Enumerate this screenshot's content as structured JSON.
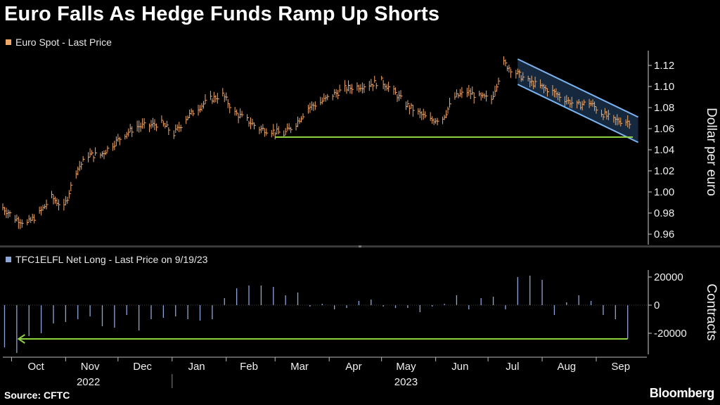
{
  "title": "Euro Falls As Hedge Funds Ramp Up Shorts",
  "source": "Source: CFTC",
  "brand": "Bloomberg",
  "colors": {
    "background": "#000000",
    "price": "#f0a868",
    "positions": "#8da6d8",
    "channel": "#7ab4f0",
    "support": "#8fd03f"
  },
  "chart_data": [
    {
      "type": "line",
      "legend": "Euro Spot - Last Price",
      "ylabel": "Dollar per euro",
      "ylim": [
        0.95,
        1.13
      ],
      "yticks": [
        0.96,
        0.98,
        1.0,
        1.02,
        1.04,
        1.06,
        1.08,
        1.1,
        1.12
      ],
      "ytick_labels": [
        "0.96",
        "0.98",
        "1.00",
        "1.02",
        "1.04",
        "1.06",
        "1.08",
        "1.10",
        "1.12"
      ],
      "grid": false,
      "legend_position": "top-left",
      "x": [
        "2022-09-26",
        "2022-10-03",
        "2022-10-10",
        "2022-10-17",
        "2022-10-24",
        "2022-10-31",
        "2022-11-07",
        "2022-11-14",
        "2022-11-21",
        "2022-11-28",
        "2022-12-05",
        "2022-12-12",
        "2022-12-19",
        "2022-12-26",
        "2023-01-02",
        "2023-01-09",
        "2023-01-16",
        "2023-01-23",
        "2023-01-30",
        "2023-02-06",
        "2023-02-13",
        "2023-02-20",
        "2023-02-27",
        "2023-03-06",
        "2023-03-13",
        "2023-03-20",
        "2023-03-27",
        "2023-04-03",
        "2023-04-10",
        "2023-04-17",
        "2023-04-24",
        "2023-05-01",
        "2023-05-08",
        "2023-05-15",
        "2023-05-22",
        "2023-05-29",
        "2023-06-05",
        "2023-06-12",
        "2023-06-19",
        "2023-06-26",
        "2023-07-03",
        "2023-07-10",
        "2023-07-17",
        "2023-07-24",
        "2023-07-31",
        "2023-08-07",
        "2023-08-14",
        "2023-08-21",
        "2023-08-28",
        "2023-09-04",
        "2023-09-11",
        "2023-09-18"
      ],
      "series": [
        {
          "values": [
            0.985,
            0.975,
            0.97,
            0.98,
            0.995,
            0.985,
            1.02,
            1.035,
            1.035,
            1.045,
            1.055,
            1.062,
            1.063,
            1.065,
            1.055,
            1.07,
            1.08,
            1.088,
            1.092,
            1.075,
            1.068,
            1.06,
            1.058,
            1.055,
            1.065,
            1.08,
            1.085,
            1.092,
            1.098,
            1.1,
            1.102,
            1.105,
            1.095,
            1.083,
            1.075,
            1.068,
            1.07,
            1.09,
            1.095,
            1.09,
            1.088,
            1.122,
            1.113,
            1.105,
            1.1,
            1.095,
            1.088,
            1.082,
            1.085,
            1.075,
            1.068,
            1.067
          ]
        }
      ],
      "annotations": {
        "support": {
          "x": [
            "2023-03-01",
            "2023-09-22"
          ],
          "y": 1.052
        },
        "channel_upper": {
          "x": [
            "2023-07-18",
            "2023-09-25"
          ],
          "y": [
            1.126,
            1.071
          ]
        },
        "channel_lower": {
          "x": [
            "2023-07-18",
            "2023-09-25"
          ],
          "y": [
            1.102,
            1.047
          ]
        }
      }
    },
    {
      "type": "bar",
      "legend": "TFC1ELFL Net Long - Last Price on 9/19/23",
      "ylabel": "Contracts",
      "ylim": [
        -35000,
        25000
      ],
      "yticks": [
        20000,
        0,
        -20000
      ],
      "ytick_labels": [
        "20000",
        "0",
        "-20000"
      ],
      "grid": false,
      "legend_position": "top-left",
      "x": [
        "2022-09-27",
        "2022-10-04",
        "2022-10-11",
        "2022-10-18",
        "2022-10-25",
        "2022-11-01",
        "2022-11-08",
        "2022-11-15",
        "2022-11-22",
        "2022-11-29",
        "2022-12-06",
        "2022-12-13",
        "2022-12-20",
        "2022-12-27",
        "2023-01-03",
        "2023-01-10",
        "2023-01-17",
        "2023-01-24",
        "2023-01-31",
        "2023-02-07",
        "2023-02-14",
        "2023-02-21",
        "2023-02-28",
        "2023-03-07",
        "2023-03-14",
        "2023-03-21",
        "2023-03-28",
        "2023-04-04",
        "2023-04-11",
        "2023-04-18",
        "2023-04-25",
        "2023-05-02",
        "2023-05-09",
        "2023-05-16",
        "2023-05-23",
        "2023-05-30",
        "2023-06-06",
        "2023-06-13",
        "2023-06-20",
        "2023-06-27",
        "2023-07-04",
        "2023-07-11",
        "2023-07-18",
        "2023-07-25",
        "2023-08-01",
        "2023-08-08",
        "2023-08-15",
        "2023-08-22",
        "2023-08-29",
        "2023-09-05",
        "2023-09-12",
        "2023-09-19"
      ],
      "series": [
        {
          "values": [
            -30000,
            -34000,
            -22000,
            -20000,
            -13000,
            -12000,
            -10000,
            -8000,
            -15000,
            -16000,
            -7000,
            -18000,
            -10000,
            -9000,
            -8000,
            -10000,
            -11000,
            -10000,
            5000,
            12000,
            14000,
            14000,
            13000,
            7000,
            9000,
            -1000,
            1000,
            -3000,
            -2000,
            3000,
            4000,
            -1000,
            -2000,
            -2000,
            -5000,
            -1000,
            1000,
            7000,
            -3000,
            5000,
            6000,
            -3000,
            20000,
            21000,
            18000,
            -7000,
            2000,
            7000,
            3000,
            -7000,
            -10000,
            -24000
          ]
        }
      ],
      "annotations": {
        "arrow": {
          "x": [
            "2023-09-19",
            "2022-10-05"
          ],
          "y": -24000
        }
      }
    }
  ],
  "x_axis": {
    "month_labels": [
      {
        "date": "2022-10-15",
        "label": "Oct"
      },
      {
        "date": "2022-11-15",
        "label": "Nov"
      },
      {
        "date": "2022-12-15",
        "label": "Dec"
      },
      {
        "date": "2023-01-15",
        "label": "Jan"
      },
      {
        "date": "2023-02-14",
        "label": "Feb"
      },
      {
        "date": "2023-03-15",
        "label": "Mar"
      },
      {
        "date": "2023-04-15",
        "label": "Apr"
      },
      {
        "date": "2023-05-15",
        "label": "May"
      },
      {
        "date": "2023-06-15",
        "label": "Jun"
      },
      {
        "date": "2023-07-15",
        "label": "Jul"
      },
      {
        "date": "2023-08-15",
        "label": "Aug"
      },
      {
        "date": "2023-09-15",
        "label": "Sep"
      }
    ],
    "year_labels": [
      {
        "date": "2022-11-14",
        "label": "2022"
      },
      {
        "date": "2023-05-15",
        "label": "2023"
      }
    ],
    "range": [
      "2022-09-26",
      "2023-09-30"
    ]
  }
}
